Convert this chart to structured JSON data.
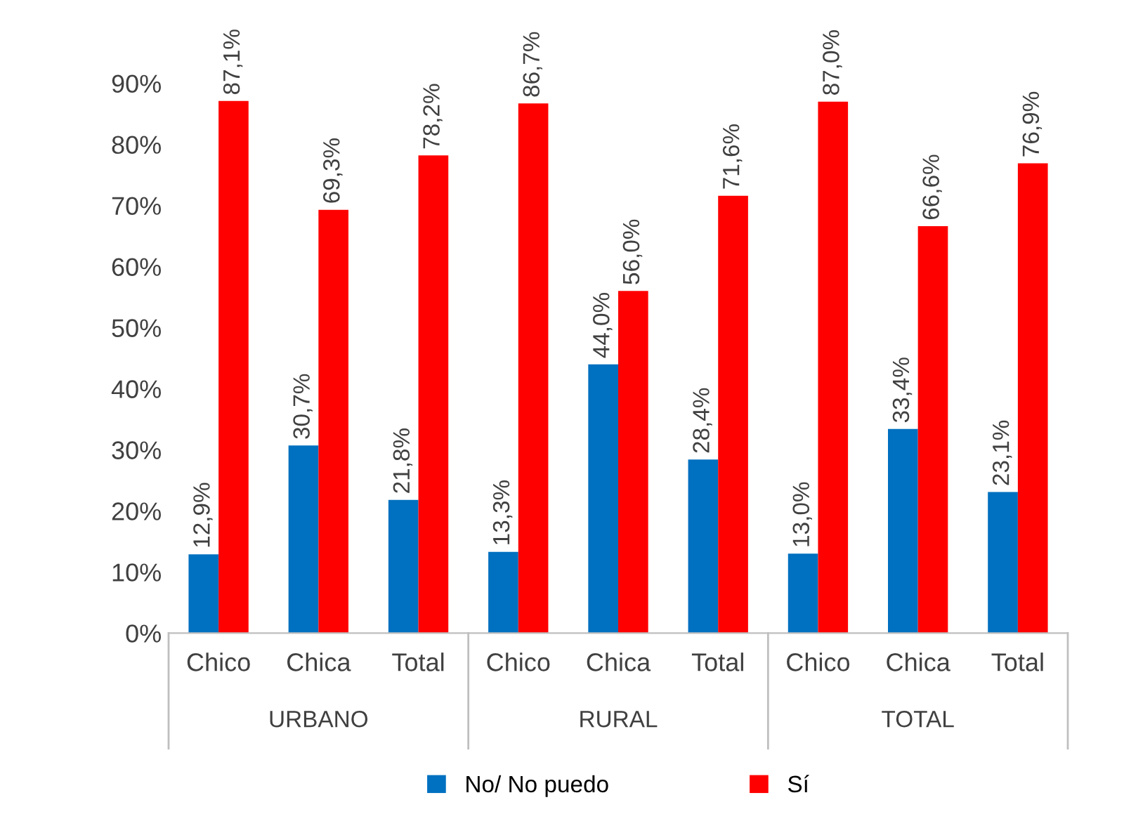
{
  "chart_data": {
    "type": "bar",
    "categories": [
      "Chico",
      "Chica",
      "Total",
      "Chico",
      "Chica",
      "Total",
      "Chico",
      "Chica",
      "Total"
    ],
    "series": [
      {
        "name": "No/ No puedo",
        "color": "#0070c0",
        "values": [
          12.9,
          30.7,
          21.8,
          13.3,
          44.0,
          28.4,
          13.0,
          33.4,
          23.1
        ],
        "value_labels": [
          "12,9%",
          "30,7%",
          "21,8%",
          "13,3%",
          "44,0%",
          "28,4%",
          "13,0%",
          "33,4%",
          "23,1%"
        ]
      },
      {
        "name": "Sí",
        "color": "#ff0000",
        "values": [
          87.1,
          69.3,
          78.2,
          86.7,
          56.0,
          71.6,
          87.0,
          66.6,
          76.9
        ],
        "value_labels": [
          "87,1%",
          "69,3%",
          "78,2%",
          "86,7%",
          "56,0%",
          "71,6%",
          "87,0%",
          "66,6%",
          "76,9%"
        ]
      }
    ],
    "annotations": [
      "URBANO",
      "RURAL",
      "TOTAL"
    ],
    "ylim": [
      0,
      90
    ],
    "yticks": [
      {
        "value": 0,
        "label": "0%"
      },
      {
        "value": 10,
        "label": "10%"
      },
      {
        "value": 20,
        "label": "20%"
      },
      {
        "value": 30,
        "label": "30%"
      },
      {
        "value": 40,
        "label": "40%"
      },
      {
        "value": 50,
        "label": "50%"
      },
      {
        "value": 60,
        "label": "60%"
      },
      {
        "value": 70,
        "label": "70%"
      },
      {
        "value": 80,
        "label": "80%"
      },
      {
        "value": 90,
        "label": "90%"
      }
    ],
    "grid": false,
    "legend": "bottom"
  }
}
